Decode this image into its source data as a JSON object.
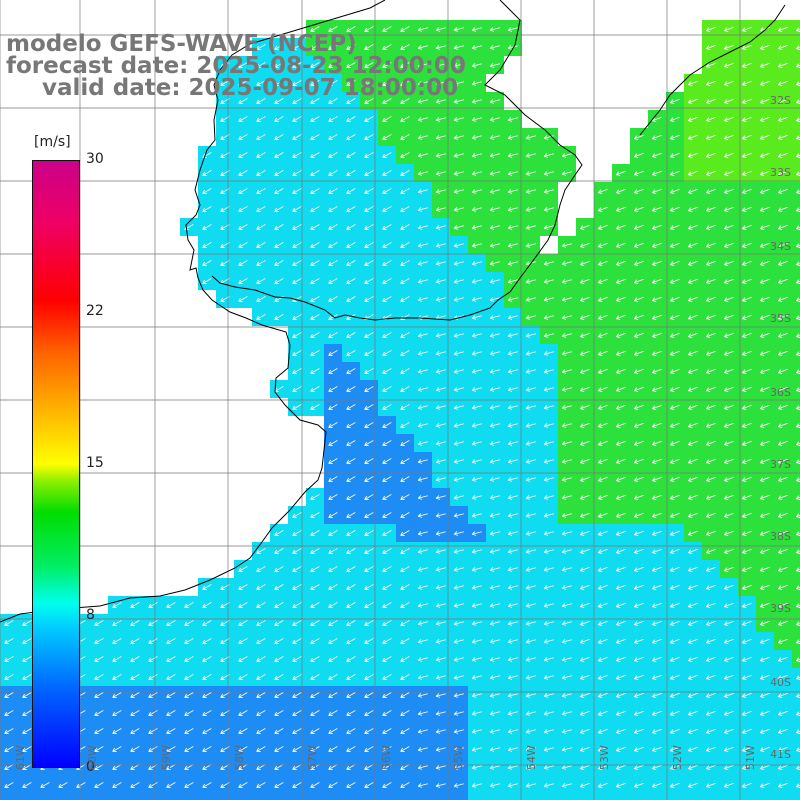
{
  "title": {
    "line1": "modelo GEFS-WAVE (NCEP)",
    "line2": "forecast date: 2025-08-23 12:00:00",
    "line3": "valid date: 2025-09-07 18:00:00"
  },
  "colorbar": {
    "unit": "[m/s]",
    "min": 0,
    "max": 30,
    "ticks": [
      "30",
      "22",
      "15",
      "8",
      "0"
    ],
    "colors": [
      "#0000ff",
      "#00ccff",
      "#00ffee",
      "#00dd00",
      "#ffff00",
      "#ff0000",
      "#cc0088"
    ]
  },
  "lat_labels": [
    "32S",
    "33S",
    "34S",
    "35S",
    "36S",
    "37S",
    "38S",
    "39S",
    "40S",
    "41S"
  ],
  "lon_labels": [
    "61W",
    "60W",
    "59W",
    "58W",
    "57W",
    "56W",
    "55W",
    "54W",
    "53W",
    "52W",
    "51W"
  ],
  "field_colors": {
    "land": "#ffffff",
    "blue": "#1e8cf5",
    "cyan": "#0fdcf0",
    "green": "#2de13c",
    "lightgreen": "#5aeb1e",
    "grid": "#777777",
    "coast": "#000000",
    "arrow": "#ffffff"
  }
}
